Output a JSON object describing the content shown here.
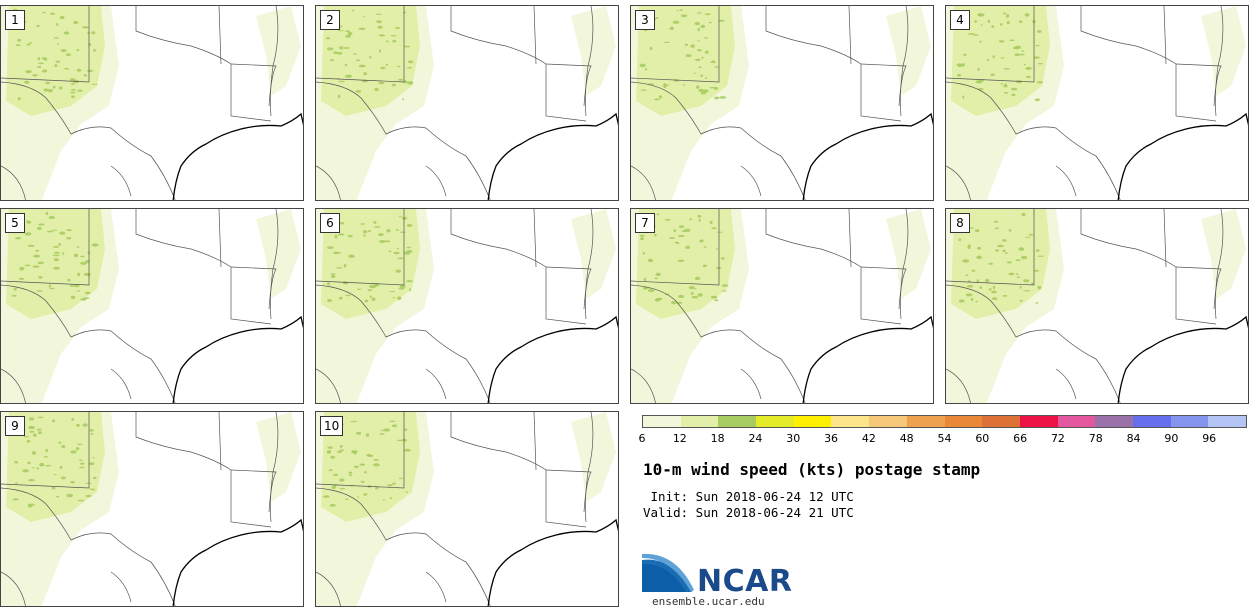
{
  "panels": [
    {
      "label": "1"
    },
    {
      "label": "2"
    },
    {
      "label": "3"
    },
    {
      "label": "4"
    },
    {
      "label": "5"
    },
    {
      "label": "6"
    },
    {
      "label": "7"
    },
    {
      "label": "8"
    },
    {
      "label": "9"
    },
    {
      "label": "10"
    }
  ],
  "colorbar": {
    "colors": [
      "#f2f7dc",
      "#e2efa8",
      "#a8cb62",
      "#e4ec2a",
      "#fff000",
      "#fde58a",
      "#f7c77a",
      "#eea250",
      "#e98938",
      "#de7236",
      "#ed1246",
      "#e2579e",
      "#9a71a9",
      "#6670ec",
      "#8395ef",
      "#b4c4f5"
    ],
    "tick_labels": [
      "6",
      "12",
      "18",
      "24",
      "30",
      "36",
      "42",
      "48",
      "54",
      "60",
      "66",
      "72",
      "78",
      "84",
      "90",
      "96"
    ]
  },
  "title": "10-m wind speed (kts) postage stamp",
  "init_text": " Init: Sun 2018-06-24 12 UTC",
  "valid_text": "Valid: Sun 2018-06-24 21 UTC",
  "logo": {
    "text": "NCAR",
    "website": "ensemble.ucar.edu",
    "color": "#1a4a8a"
  }
}
